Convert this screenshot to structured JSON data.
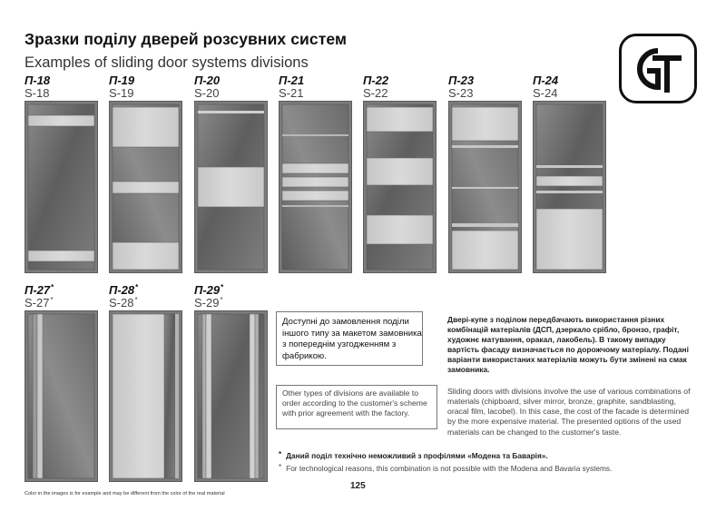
{
  "header": {
    "title_ua": "Зразки поділу дверей розсувних систем",
    "title_en": "Examples of sliding door systems divisions",
    "logo_text": "GT"
  },
  "doors": [
    {
      "code_ua": "П-18",
      "code_en": "S-18",
      "star": ""
    },
    {
      "code_ua": "П-19",
      "code_en": "S-19",
      "star": ""
    },
    {
      "code_ua": "П-20",
      "code_en": "S-20",
      "star": ""
    },
    {
      "code_ua": "П-21",
      "code_en": "S-21",
      "star": ""
    },
    {
      "code_ua": "П-22",
      "code_en": "S-22",
      "star": ""
    },
    {
      "code_ua": "П-23",
      "code_en": "S-23",
      "star": ""
    },
    {
      "code_ua": "П-24",
      "code_en": "S-24",
      "star": ""
    },
    {
      "code_ua": "П-27",
      "code_en": "S-27",
      "star": "*"
    },
    {
      "code_ua": "П-28",
      "code_en": "S-28",
      "star": "*"
    },
    {
      "code_ua": "П-29",
      "code_en": "S-29",
      "star": "*"
    }
  ],
  "notes": {
    "custom_ua": "Доступні до замовлення поділи іншого типу за макетом замовника з попереднім узгодженням з фабрикою.",
    "custom_en": "Other types of divisions are available to order according to the customer's scheme with prior agreement with the factory.",
    "materials_ua": "Двері-купе з поділом передбачають використання різних комбінацій матеріалів (ДСП, дзеркало срібло, бронзо, графіт, художнє матування, оракал, лакобель). В такому випадку вартість фасаду визначається по дорожчому матеріалу. Подані варіанти використаних матеріалів можуть бути змінені на смак замовника.",
    "materials_en": "Sliding doors with divisions involve the use of various combinations of materials (chipboard, silver mirror, bronze, graphite, sandblasting, oracal film, lacobel). In this case, the cost of the facade is determined by the more expensive material. The presented options of the used materials can be changed to the customer's taste."
  },
  "footnotes": {
    "star": "*",
    "ua": "Даний поділ технічно неможливий з профілями «Модена та Баварія».",
    "en": "For technological reasons, this combination is not possible with the Modena and Bavaria systems."
  },
  "footer": {
    "disclaimer": "Color in the images is for example and may be different from the color of the real material",
    "page_number": "125"
  },
  "colors": {
    "dark_panel": "#6e6e6e",
    "light_panel": "#cfcfcf",
    "frame": "#5a5a5a"
  }
}
